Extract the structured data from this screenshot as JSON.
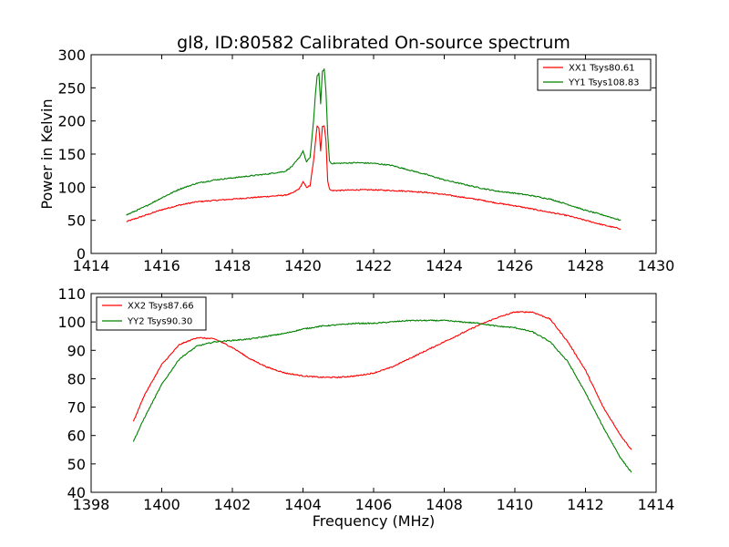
{
  "page": {
    "title": "gl8, ID:80582 Calibrated On-source spectrum"
  },
  "chart_data": [
    {
      "type": "line",
      "title": "gl8, ID:80582 Calibrated On-source spectrum",
      "xlabel": "",
      "ylabel": "Power in Kelvin",
      "xlim": [
        1414,
        1430
      ],
      "ylim": [
        0,
        300
      ],
      "x_ticks": [
        "1414",
        "1416",
        "1418",
        "1420",
        "1422",
        "1424",
        "1426",
        "1428",
        "1430"
      ],
      "y_ticks": [
        "0",
        "50",
        "100",
        "150",
        "200",
        "250",
        "300"
      ],
      "grid": false,
      "legend_position": "top-right",
      "series": [
        {
          "name": "XX1 Tsys80.61",
          "color": "#ff0000",
          "x": [
            1415.0,
            1415.5,
            1416.0,
            1416.5,
            1417.0,
            1417.5,
            1418.0,
            1418.5,
            1419.0,
            1419.5,
            1419.7,
            1419.9,
            1420.0,
            1420.1,
            1420.2,
            1420.3,
            1420.4,
            1420.45,
            1420.5,
            1420.55,
            1420.6,
            1420.65,
            1420.7,
            1420.75,
            1420.8,
            1421.0,
            1421.5,
            1422.0,
            1422.5,
            1423.0,
            1423.5,
            1424.0,
            1424.5,
            1425.0,
            1425.5,
            1426.0,
            1426.5,
            1427.0,
            1427.5,
            1428.0,
            1428.5,
            1429.0
          ],
          "y": [
            48,
            57,
            66,
            73,
            78,
            80,
            82,
            84,
            86,
            88,
            91,
            98,
            108,
            100,
            102,
            140,
            193,
            190,
            155,
            192,
            193,
            170,
            110,
            97,
            95,
            95,
            96,
            96,
            95,
            94,
            92,
            89,
            85,
            81,
            76,
            72,
            67,
            62,
            57,
            50,
            43,
            37
          ]
        },
        {
          "name": "YY1 Tsys108.83",
          "color": "#008000",
          "x": [
            1415.0,
            1415.5,
            1416.0,
            1416.5,
            1417.0,
            1417.5,
            1418.0,
            1418.5,
            1419.0,
            1419.5,
            1419.7,
            1419.9,
            1420.0,
            1420.1,
            1420.2,
            1420.3,
            1420.35,
            1420.4,
            1420.45,
            1420.5,
            1420.55,
            1420.6,
            1420.65,
            1420.7,
            1420.75,
            1420.8,
            1421.0,
            1421.5,
            1422.0,
            1422.5,
            1423.0,
            1423.5,
            1424.0,
            1424.5,
            1425.0,
            1425.5,
            1426.0,
            1426.5,
            1427.0,
            1427.5,
            1428.0,
            1428.5,
            1429.0
          ],
          "y": [
            58,
            70,
            84,
            97,
            106,
            111,
            114,
            117,
            120,
            124,
            132,
            145,
            155,
            138,
            145,
            200,
            240,
            268,
            272,
            225,
            275,
            278,
            245,
            180,
            140,
            136,
            136,
            137,
            136,
            133,
            126,
            119,
            111,
            105,
            99,
            94,
            91,
            87,
            82,
            74,
            65,
            58,
            50
          ]
        }
      ]
    },
    {
      "type": "line",
      "title": "",
      "xlabel": "Frequency (MHz)",
      "ylabel": "",
      "xlim": [
        1398,
        1414
      ],
      "ylim": [
        40,
        110
      ],
      "x_ticks": [
        "1398",
        "1400",
        "1402",
        "1404",
        "1406",
        "1408",
        "1410",
        "1412",
        "1414"
      ],
      "y_ticks": [
        "40",
        "50",
        "60",
        "70",
        "80",
        "90",
        "100",
        "110"
      ],
      "grid": false,
      "legend_position": "top-left",
      "series": [
        {
          "name": "XX2 Tsys87.66",
          "color": "#ff0000",
          "x": [
            1399.2,
            1399.5,
            1400.0,
            1400.5,
            1401.0,
            1401.5,
            1402.0,
            1402.5,
            1403.0,
            1403.5,
            1404.0,
            1404.5,
            1405.0,
            1405.5,
            1406.0,
            1406.5,
            1407.0,
            1407.5,
            1408.0,
            1408.5,
            1409.0,
            1409.5,
            1410.0,
            1410.5,
            1411.0,
            1411.5,
            1412.0,
            1412.5,
            1413.0,
            1413.3
          ],
          "y": [
            65,
            74,
            85,
            92,
            94.5,
            94,
            91,
            87,
            84,
            82,
            81,
            80.5,
            80.5,
            81,
            82,
            84,
            87,
            90,
            93,
            96,
            99,
            101.5,
            103.5,
            103.5,
            101,
            93,
            83,
            70,
            60,
            55
          ]
        },
        {
          "name": "YY2 Tsys90.30",
          "color": "#008000",
          "x": [
            1399.2,
            1399.5,
            1400.0,
            1400.5,
            1401.0,
            1401.5,
            1402.0,
            1402.5,
            1403.0,
            1403.5,
            1404.0,
            1404.5,
            1405.0,
            1405.5,
            1406.0,
            1406.5,
            1407.0,
            1407.5,
            1408.0,
            1408.5,
            1409.0,
            1409.5,
            1410.0,
            1410.5,
            1411.0,
            1411.5,
            1412.0,
            1412.5,
            1413.0,
            1413.3
          ],
          "y": [
            58,
            66,
            78,
            87,
            91.5,
            93,
            93.5,
            94,
            95,
            96,
            97.5,
            98.5,
            99,
            99.5,
            99.5,
            100,
            100.5,
            100.5,
            100.5,
            100,
            99.5,
            98.5,
            98,
            96.5,
            93,
            86,
            75,
            63,
            52,
            47
          ]
        }
      ]
    }
  ]
}
